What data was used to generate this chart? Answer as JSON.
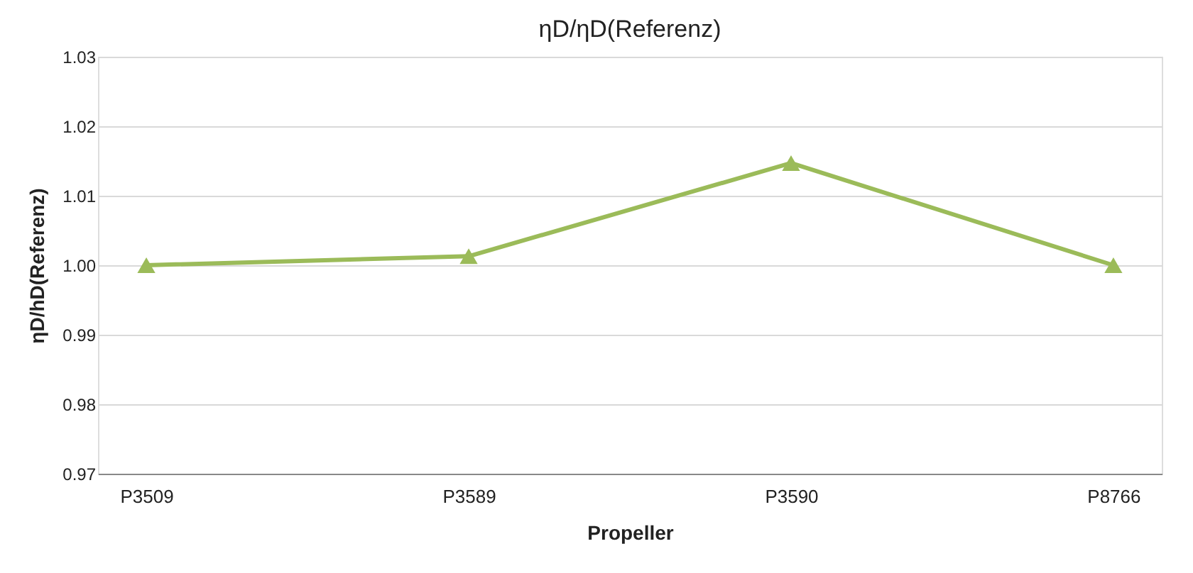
{
  "chart_data": {
    "type": "line",
    "title": "ηD/ηD(Referenz)",
    "xlabel": "Propeller",
    "ylabel": "ηD/hD(Referenz)",
    "categories": [
      "P3509",
      "P3589",
      "P3590",
      "P8766"
    ],
    "series": [
      {
        "color": "#9bbb59",
        "values": [
          1.0,
          1.0013,
          1.0147,
          1.0
        ]
      }
    ],
    "ylim": [
      0.97,
      1.03
    ],
    "yticks": [
      0.97,
      0.98,
      0.99,
      {
        "value": 1.0,
        "label": "1.00"
      },
      1.01,
      1.02,
      1.03
    ],
    "grid": "y",
    "marker": "triangle",
    "line_style": "solid"
  }
}
